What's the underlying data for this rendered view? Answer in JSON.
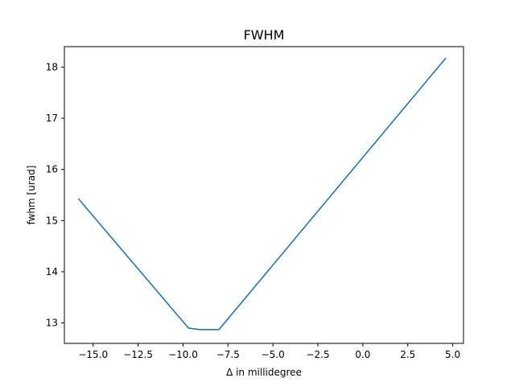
{
  "chart_data": {
    "type": "line",
    "title": "FWHM",
    "xlabel": "Δ in millidegree",
    "ylabel": "fwhm [urad]",
    "xlim": [
      -16.6,
      5.6
    ],
    "ylim": [
      12.6,
      18.4
    ],
    "xticks": [
      -15.0,
      -12.5,
      -10.0,
      -7.5,
      -5.0,
      -2.5,
      0.0,
      2.5,
      5.0
    ],
    "xtick_labels": [
      "−15.0",
      "−12.5",
      "−10.0",
      "−7.5",
      "−5.0",
      "−2.5",
      "0.0",
      "2.5",
      "5.0"
    ],
    "yticks": [
      13,
      14,
      15,
      16,
      17,
      18
    ],
    "ytick_labels": [
      "13",
      "14",
      "15",
      "16",
      "17",
      "18"
    ],
    "grid": false,
    "series": [
      {
        "color": "#1f77b4",
        "x": [
          -15.8,
          -9.7,
          -9.1,
          -8.0,
          4.6
        ],
        "y": [
          15.42,
          12.9,
          12.87,
          12.87,
          18.17
        ]
      }
    ]
  }
}
